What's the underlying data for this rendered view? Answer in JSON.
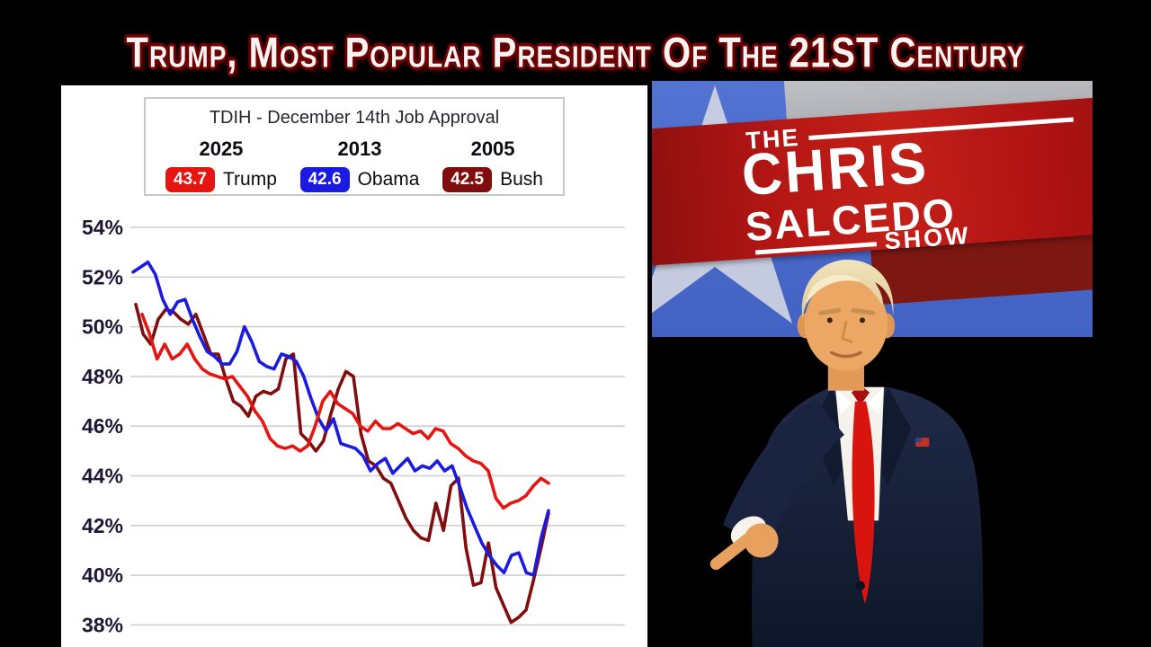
{
  "title_banner": {
    "text": "Trump, Most Popular President Of The 21ST Century"
  },
  "show_logo": {
    "the": "THE",
    "chris": "CHRIS",
    "salcedo": "SALCEDO",
    "show": "SHOW"
  },
  "chart_data": {
    "type": "line",
    "title": "TDIH - December 14th Job Approval",
    "xlabel": "",
    "ylabel": "",
    "ylim": [
      37.5,
      54.5
    ],
    "yticks": [
      54,
      52,
      50,
      48,
      46,
      44,
      42,
      40,
      38
    ],
    "ytick_suffix": "%",
    "grid": true,
    "legend_position": "top",
    "colors": {
      "grid": "#cfcfcf",
      "tick_label": "#1f1535",
      "panel": "#ffffff"
    },
    "legend": [
      {
        "year": "2025",
        "value": "43.7",
        "name": "Trump",
        "color": "#e51511"
      },
      {
        "year": "2013",
        "value": "42.6",
        "name": "Obama",
        "color": "#1a1ae0"
      },
      {
        "year": "2005",
        "value": "42.5",
        "name": "Bush",
        "color": "#800e0e"
      }
    ],
    "series": [
      {
        "name": "Bush 2005",
        "color": "#800e0e",
        "x0": 83,
        "values": [
          50.9,
          49.7,
          49.3,
          50.3,
          50.7,
          50.6,
          50.3,
          50.1,
          50.5,
          49.7,
          48.9,
          48.9,
          47.9,
          47.0,
          46.8,
          46.4,
          47.2,
          47.4,
          47.3,
          47.5,
          48.7,
          48.9,
          45.7,
          45.4,
          45.0,
          45.4,
          46.5,
          47.5,
          48.2,
          48.0,
          45.7,
          44.6,
          44.4,
          43.9,
          43.7,
          43.0,
          42.3,
          41.8,
          41.5,
          41.4,
          42.9,
          41.8,
          43.6,
          43.9,
          41.1,
          39.6,
          39.7,
          41.3,
          39.5,
          38.8,
          38.1,
          38.3,
          38.6,
          39.8,
          41.1,
          42.5
        ]
      },
      {
        "name": "Obama 2013",
        "color": "#1a1ae0",
        "x0": 80,
        "values": [
          52.2,
          52.4,
          52.6,
          52.1,
          51.1,
          50.5,
          51.0,
          51.1,
          50.3,
          49.6,
          49.0,
          48.8,
          48.5,
          48.5,
          49.0,
          50.0,
          49.4,
          48.6,
          48.4,
          48.3,
          48.9,
          48.8,
          48.6,
          48.0,
          47.1,
          46.3,
          45.8,
          46.3,
          45.3,
          45.2,
          45.1,
          44.8,
          44.2,
          44.5,
          44.7,
          44.1,
          44.4,
          44.7,
          44.2,
          44.4,
          44.3,
          44.6,
          44.2,
          44.4,
          43.6,
          42.7,
          42.0,
          41.3,
          40.8,
          40.4,
          40.1,
          40.8,
          40.9,
          40.1,
          40.0,
          41.5,
          42.6
        ]
      },
      {
        "name": "Trump 2025",
        "color": "#e51511",
        "x0": 90,
        "values": [
          50.5,
          49.7,
          48.7,
          49.3,
          48.7,
          48.9,
          49.3,
          48.7,
          48.3,
          48.1,
          48.0,
          47.9,
          48.0,
          47.6,
          47.2,
          46.6,
          46.2,
          45.5,
          45.2,
          45.1,
          45.2,
          45.0,
          45.2,
          46.0,
          47.0,
          47.4,
          46.9,
          46.7,
          46.5,
          46.0,
          45.8,
          46.2,
          45.9,
          45.9,
          46.1,
          45.9,
          45.7,
          45.8,
          45.5,
          45.9,
          45.8,
          45.3,
          45.1,
          44.8,
          44.6,
          44.5,
          44.2,
          43.1,
          42.7,
          42.9,
          43.0,
          43.2,
          43.6,
          43.9,
          43.7
        ]
      }
    ]
  }
}
